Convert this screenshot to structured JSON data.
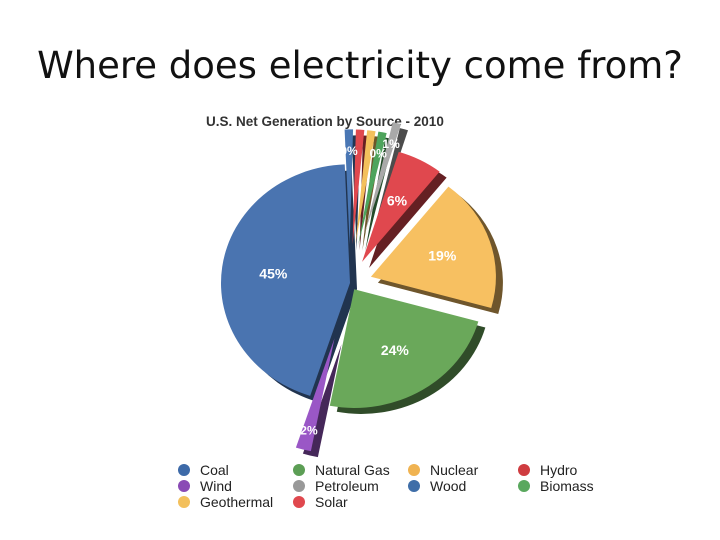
{
  "slide": {
    "title": "Where does electricity come from?"
  },
  "chart_data": {
    "type": "pie",
    "title": "U.S. Net Generation by Source - 2010",
    "slices": [
      {
        "name": "Coal",
        "value": 45,
        "label": "45%",
        "color": "#4a74b0"
      },
      {
        "name": "Wood",
        "value": 0.4,
        "label": "0%",
        "color": "#4a77b4"
      },
      {
        "name": "Solar",
        "value": 0.2,
        "label": "",
        "color": "#e0484e"
      },
      {
        "name": "Geothermal",
        "value": 0.4,
        "label": "",
        "color": "#f3c05c"
      },
      {
        "name": "Biomass",
        "value": 0.4,
        "label": "0%",
        "color": "#4ea45c"
      },
      {
        "name": "Petroleum",
        "value": 1,
        "label": "1%",
        "color": "#a9a9a9"
      },
      {
        "name": "Hydro",
        "value": 6,
        "label": "6%",
        "color": "#e0484e"
      },
      {
        "name": "Nuclear",
        "value": 19,
        "label": "19%",
        "color": "#f7c061"
      },
      {
        "name": "Natural Gas",
        "value": 24,
        "label": "24%",
        "color": "#6aa85a"
      },
      {
        "name": "Wind",
        "value": 2,
        "label": "2%",
        "color": "#9a57c6"
      }
    ],
    "legend": [
      {
        "label": "Coal",
        "color": "#3d6aa8"
      },
      {
        "label": "Natural Gas",
        "color": "#5c9e55"
      },
      {
        "label": "Nuclear",
        "color": "#f0b351"
      },
      {
        "label": "Hydro",
        "color": "#cf3c40"
      },
      {
        "label": "Wind",
        "color": "#8a4bb5"
      },
      {
        "label": "Petroleum",
        "color": "#999999"
      },
      {
        "label": "Wood",
        "color": "#3f6ea8"
      },
      {
        "label": "Biomass",
        "color": "#5aa85e"
      },
      {
        "label": "Geothermal",
        "color": "#f3c05c"
      },
      {
        "label": "Solar",
        "color": "#e0484e"
      }
    ],
    "legend_position": "bottom",
    "exploded": true
  }
}
